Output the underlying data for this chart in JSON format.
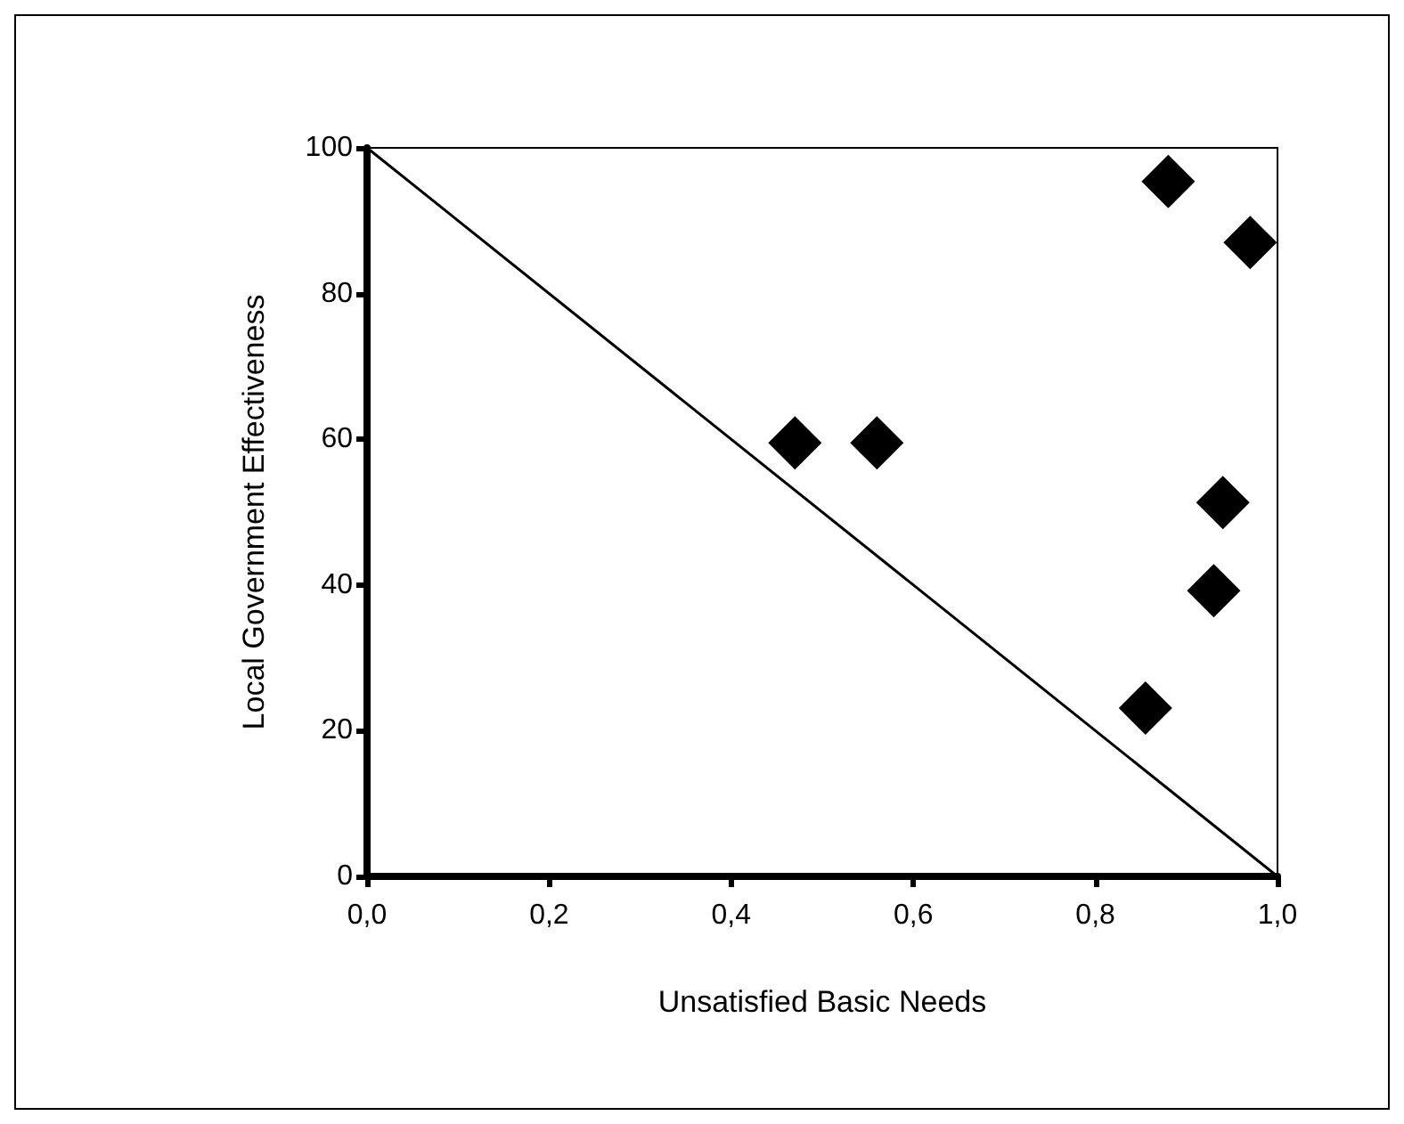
{
  "chart_data": {
    "type": "scatter",
    "xlabel": "Unsatisfied Basic Needs",
    "ylabel": "Local Government Effectiveness",
    "xlim": [
      0,
      1
    ],
    "xticks": [
      {
        "value": 0,
        "label": "0,0"
      },
      {
        "value": 0.2,
        "label": "0,2"
      },
      {
        "value": 0.4,
        "label": "0,4"
      },
      {
        "value": 0.6,
        "label": "0,6"
      },
      {
        "value": 0.8,
        "label": "0,8"
      },
      {
        "value": 1,
        "label": "1,0"
      }
    ],
    "ylim": [
      0,
      100
    ],
    "yticks": [
      0,
      20,
      40,
      60,
      80,
      100
    ],
    "grid": false,
    "series": [
      {
        "color": "#000000",
        "marker": "diamond",
        "x": [
          0.47,
          0.56,
          0.88,
          0.97,
          0.94,
          0.93,
          0.855
        ],
        "values": [
          59.5,
          59.5,
          95.4,
          87,
          51.3,
          39.2,
          23.1
        ]
      },
      {
        "type": "line",
        "color": "#000000",
        "marker": "none",
        "line_style": "solid",
        "x": [
          0,
          1
        ],
        "values": [
          100,
          0
        ]
      }
    ]
  }
}
